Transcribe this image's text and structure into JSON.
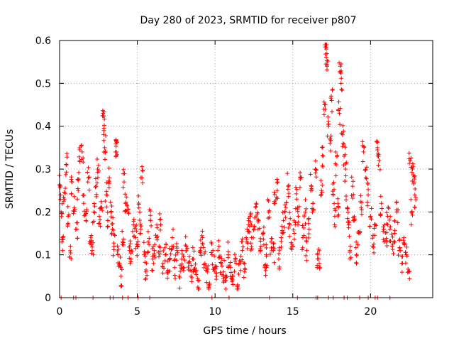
{
  "chart_data": {
    "type": "scatter",
    "title": "Day 280 of 2023, SRMTID for receiver p807",
    "xlabel": "GPS time / hours",
    "ylabel": "SRMTID / TECUs",
    "xlim": [
      0,
      24
    ],
    "ylim": [
      0,
      0.6
    ],
    "x_ticks": [
      0,
      5,
      10,
      15,
      20
    ],
    "y_ticks": [
      0,
      0.1,
      0.2,
      0.3,
      0.4,
      0.5,
      0.6
    ],
    "x_tick_labels": [
      "0",
      "5",
      "10",
      "15",
      "20"
    ],
    "y_tick_labels": [
      "0",
      "0.1",
      "0.2",
      "0.3",
      "0.4",
      "0.5",
      "0.6"
    ],
    "grid": true,
    "marker": "+",
    "series": [
      {
        "name": "SRMTID",
        "color": "#ff0000",
        "points": [
          [
            0.05,
            0.26
          ],
          [
            0.1,
            0.2
          ],
          [
            0.2,
            0.14
          ],
          [
            0.3,
            0.23
          ],
          [
            0.45,
            0.31
          ],
          [
            0.55,
            0.19
          ],
          [
            0.7,
            0.12
          ],
          [
            0.8,
            0.27
          ],
          [
            0.95,
            0.21
          ],
          [
            1.1,
            0.16
          ],
          [
            1.2,
            0.25
          ],
          [
            1.3,
            0.32
          ],
          [
            1.45,
            0.34
          ],
          [
            1.55,
            0.22
          ],
          [
            1.7,
            0.18
          ],
          [
            1.85,
            0.28
          ],
          [
            2.0,
            0.13
          ],
          [
            2.1,
            0.11
          ],
          [
            2.2,
            0.2
          ],
          [
            2.35,
            0.26
          ],
          [
            2.45,
            0.3
          ],
          [
            2.55,
            0.19
          ],
          [
            2.7,
            0.21
          ],
          [
            2.8,
            0.43
          ],
          [
            2.85,
            0.39
          ],
          [
            2.9,
            0.35
          ],
          [
            3.0,
            0.24
          ],
          [
            3.1,
            0.18
          ],
          [
            3.2,
            0.28
          ],
          [
            3.3,
            0.2
          ],
          [
            3.4,
            0.16
          ],
          [
            3.5,
            0.12
          ],
          [
            3.6,
            0.34
          ],
          [
            3.65,
            0.34
          ],
          [
            3.75,
            0.1
          ],
          [
            3.85,
            0.08
          ],
          [
            3.95,
            0.05
          ],
          [
            4.05,
            0.13
          ],
          [
            4.15,
            0.27
          ],
          [
            4.25,
            0.22
          ],
          [
            4.4,
            0.2
          ],
          [
            4.5,
            0.11
          ],
          [
            4.6,
            0.09
          ],
          [
            4.75,
            0.17
          ],
          [
            4.9,
            0.14
          ],
          [
            5.0,
            0.12
          ],
          [
            5.1,
            0.21
          ],
          [
            5.2,
            0.15
          ],
          [
            5.3,
            0.28
          ],
          [
            5.45,
            0.1
          ],
          [
            5.55,
            0.06
          ],
          [
            5.7,
            0.13
          ],
          [
            5.85,
            0.18
          ],
          [
            6.0,
            0.09
          ],
          [
            6.1,
            0.11
          ],
          [
            6.25,
            0.14
          ],
          [
            6.4,
            0.12
          ],
          [
            6.5,
            0.17
          ],
          [
            6.65,
            0.08
          ],
          [
            6.8,
            0.1
          ],
          [
            6.95,
            0.06
          ],
          [
            7.1,
            0.09
          ],
          [
            7.25,
            0.14
          ],
          [
            7.4,
            0.07
          ],
          [
            7.55,
            0.11
          ],
          [
            7.7,
            0.05
          ],
          [
            7.85,
            0.09
          ],
          [
            8.0,
            0.07
          ],
          [
            8.15,
            0.12
          ],
          [
            8.3,
            0.08
          ],
          [
            8.45,
            0.05
          ],
          [
            8.6,
            0.09
          ],
          [
            8.75,
            0.06
          ],
          [
            8.9,
            0.04
          ],
          [
            9.05,
            0.11
          ],
          [
            9.2,
            0.14
          ],
          [
            9.35,
            0.08
          ],
          [
            9.5,
            0.06
          ],
          [
            9.65,
            0.03
          ],
          [
            9.8,
            0.1
          ],
          [
            9.95,
            0.07
          ],
          [
            10.1,
            0.05
          ],
          [
            10.25,
            0.12
          ],
          [
            10.4,
            0.08
          ],
          [
            10.55,
            0.06
          ],
          [
            10.7,
            0.04
          ],
          [
            10.85,
            0.1
          ],
          [
            11.0,
            0.07
          ],
          [
            11.15,
            0.05
          ],
          [
            11.3,
            0.09
          ],
          [
            11.45,
            0.03
          ],
          [
            11.6,
            0.08
          ],
          [
            11.75,
            0.11
          ],
          [
            11.9,
            0.06
          ],
          [
            12.05,
            0.13
          ],
          [
            12.15,
            0.17
          ],
          [
            12.25,
            0.19
          ],
          [
            12.35,
            0.14
          ],
          [
            12.5,
            0.16
          ],
          [
            12.65,
            0.22
          ],
          [
            12.8,
            0.18
          ],
          [
            12.95,
            0.12
          ],
          [
            13.1,
            0.15
          ],
          [
            13.2,
            0.07
          ],
          [
            13.3,
            0.1
          ],
          [
            13.45,
            0.2
          ],
          [
            13.6,
            0.13
          ],
          [
            13.75,
            0.11
          ],
          [
            13.85,
            0.22
          ],
          [
            14.0,
            0.25
          ],
          [
            14.1,
            0.09
          ],
          [
            14.25,
            0.14
          ],
          [
            14.4,
            0.18
          ],
          [
            14.55,
            0.21
          ],
          [
            14.7,
            0.26
          ],
          [
            14.8,
            0.17
          ],
          [
            14.95,
            0.12
          ],
          [
            15.1,
            0.15
          ],
          [
            15.25,
            0.23
          ],
          [
            15.35,
            0.19
          ],
          [
            15.5,
            0.28
          ],
          [
            15.65,
            0.14
          ],
          [
            15.8,
            0.2
          ],
          [
            15.9,
            0.11
          ],
          [
            16.05,
            0.16
          ],
          [
            16.2,
            0.26
          ],
          [
            16.3,
            0.22
          ],
          [
            16.45,
            0.3
          ],
          [
            16.6,
            0.1
          ],
          [
            16.7,
            0.08
          ],
          [
            16.85,
            0.25
          ],
          [
            16.95,
            0.33
          ],
          [
            17.05,
            0.45
          ],
          [
            17.1,
            0.59
          ],
          [
            17.15,
            0.58
          ],
          [
            17.2,
            0.54
          ],
          [
            17.3,
            0.4
          ],
          [
            17.4,
            0.37
          ],
          [
            17.5,
            0.46
          ],
          [
            17.6,
            0.24
          ],
          [
            17.7,
            0.19
          ],
          [
            17.8,
            0.31
          ],
          [
            17.9,
            0.22
          ],
          [
            18.0,
            0.43
          ],
          [
            18.05,
            0.54
          ],
          [
            18.1,
            0.5
          ],
          [
            18.2,
            0.38
          ],
          [
            18.3,
            0.33
          ],
          [
            18.4,
            0.3
          ],
          [
            18.5,
            0.21
          ],
          [
            18.6,
            0.17
          ],
          [
            18.7,
            0.12
          ],
          [
            18.85,
            0.26
          ],
          [
            18.95,
            0.18
          ],
          [
            19.1,
            0.1
          ],
          [
            19.25,
            0.15
          ],
          [
            19.4,
            0.21
          ],
          [
            19.55,
            0.34
          ],
          [
            19.7,
            0.28
          ],
          [
            19.85,
            0.24
          ],
          [
            20.0,
            0.19
          ],
          [
            20.15,
            0.12
          ],
          [
            20.3,
            0.17
          ],
          [
            20.45,
            0.35
          ],
          [
            20.55,
            0.32
          ],
          [
            20.7,
            0.22
          ],
          [
            20.85,
            0.16
          ],
          [
            21.0,
            0.13
          ],
          [
            21.1,
            0.19
          ],
          [
            21.25,
            0.16
          ],
          [
            21.4,
            0.12
          ],
          [
            21.55,
            0.15
          ],
          [
            21.7,
            0.2
          ],
          [
            21.85,
            0.11
          ],
          [
            22.0,
            0.08
          ],
          [
            22.15,
            0.14
          ],
          [
            22.3,
            0.1
          ],
          [
            22.45,
            0.06
          ],
          [
            22.55,
            0.32
          ],
          [
            22.65,
            0.2
          ],
          [
            22.7,
            0.3
          ],
          [
            22.8,
            0.27
          ],
          [
            22.85,
            0.24
          ]
        ]
      }
    ],
    "zero_points": [
      0.1,
      0.9,
      1.05,
      2.15,
      3.25,
      3.45,
      4.05,
      4.4,
      5.05,
      5.8,
      9.8,
      10.9,
      13.5,
      15.3,
      16.5,
      16.6,
      17.3,
      17.6,
      18.3,
      18.5,
      19.3,
      19.85,
      20.3,
      20.45,
      21.25
    ]
  }
}
